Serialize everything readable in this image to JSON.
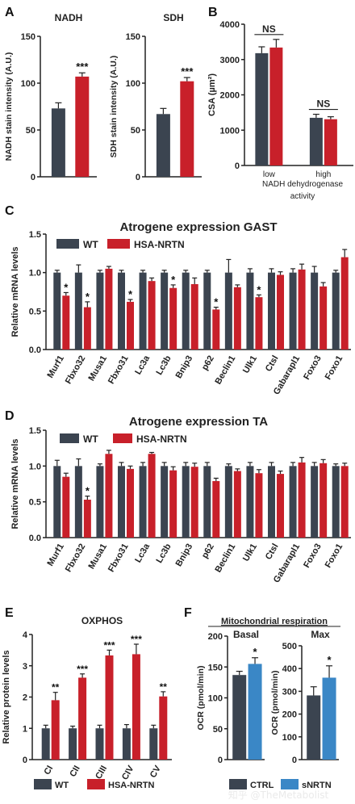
{
  "colors": {
    "wt": "#3b4450",
    "nrtn": "#c8202a",
    "ctrl": "#3b4450",
    "snrtn": "#3a87c6"
  },
  "watermark": "知乎 @TheMetabolist",
  "panels": {
    "A": {
      "letter": "A",
      "ylabel1": "NADH stain intensity (A.U.)",
      "ylabel2": "SDH stain intensity (A.U.)"
    },
    "B": {
      "letter": "B",
      "xlabel": "NADH dehydrogenase activity",
      "ylabel": "CSA (µm²)"
    },
    "C": {
      "letter": "C",
      "legend_wt": "WT",
      "legend_nrtn": "HSA-NRTN",
      "ylabel": "Relative mRNA levels"
    },
    "D": {
      "letter": "D",
      "legend_wt": "WT",
      "legend_nrtn": "HSA-NRTN",
      "ylabel": "Relative mRNA levels"
    },
    "E": {
      "letter": "E",
      "legend_wt": "WT",
      "legend_nrtn": "HSA-NRTN",
      "ylabel": "Relative protein levels"
    },
    "F": {
      "letter": "F",
      "title": "Mitochondrial respiration",
      "ylabel": "OCR (pmol/min)",
      "legend_ctrl": "CTRL",
      "legend_snrtn": "sNRTN"
    }
  },
  "chart_data": [
    {
      "id": "A1",
      "type": "bar",
      "title": "NADH",
      "ylabel": "NADH stain intensity (A.U.)",
      "categories": [
        "WT",
        "HSA-NRTN"
      ],
      "values": [
        73,
        107
      ],
      "errors": [
        6,
        4
      ],
      "ylim": [
        0,
        150
      ],
      "yticks": [
        0,
        50,
        100,
        150
      ],
      "significance": [
        "",
        "***"
      ]
    },
    {
      "id": "A2",
      "type": "bar",
      "title": "SDH",
      "ylabel": "SDH stain intensity (A.U.)",
      "categories": [
        "WT",
        "HSA-NRTN"
      ],
      "values": [
        67,
        102
      ],
      "errors": [
        6,
        4
      ],
      "ylim": [
        0,
        150
      ],
      "yticks": [
        0,
        50,
        100,
        150
      ],
      "significance": [
        "",
        "***"
      ]
    },
    {
      "id": "B",
      "type": "bar",
      "ylabel": "CSA (µm²)",
      "xlabel": "NADH dehydrogenase activity",
      "categories": [
        "low",
        "high"
      ],
      "ylim": [
        0,
        4000
      ],
      "yticks": [
        0,
        1000,
        2000,
        3000,
        4000
      ],
      "series": [
        {
          "name": "WT",
          "values": [
            3180,
            1350
          ],
          "errors": [
            180,
            100
          ]
        },
        {
          "name": "HSA-NRTN",
          "values": [
            3340,
            1310
          ],
          "errors": [
            230,
            70
          ]
        }
      ],
      "significance": [
        "NS",
        "NS"
      ]
    },
    {
      "id": "C",
      "type": "bar",
      "title": "Atrogene expression GAST",
      "ylabel": "Relative mRNA levels",
      "categories": [
        "Murf1",
        "Fbxo32",
        "Musa1",
        "Fbxo31",
        "Lc3a",
        "Lc3b",
        "Bnip3",
        "p62",
        "Beclin1",
        "Ulk1",
        "Ctsl",
        "Gabarapl1",
        "Foxo3",
        "Foxo1"
      ],
      "ylim": [
        0,
        1.5
      ],
      "yticks": [
        0.0,
        0.5,
        1.0,
        1.5
      ],
      "series": [
        {
          "name": "WT",
          "values": [
            1.0,
            1.0,
            1.0,
            1.0,
            1.0,
            1.0,
            1.0,
            1.0,
            1.0,
            1.0,
            1.0,
            1.0,
            1.0,
            1.0
          ],
          "errors": [
            0.03,
            0.1,
            0.03,
            0.03,
            0.03,
            0.03,
            0.03,
            0.03,
            0.17,
            0.05,
            0.05,
            0.05,
            0.08,
            0.03
          ]
        },
        {
          "name": "HSA-NRTN",
          "values": [
            0.7,
            0.55,
            1.05,
            0.62,
            0.89,
            0.8,
            0.85,
            0.52,
            0.81,
            0.68,
            0.97,
            1.04,
            0.82,
            1.2
          ],
          "errors": [
            0.04,
            0.07,
            0.03,
            0.03,
            0.04,
            0.04,
            0.08,
            0.03,
            0.03,
            0.03,
            0.04,
            0.07,
            0.05,
            0.1
          ]
        }
      ],
      "significance": [
        "*",
        "*",
        "",
        "*",
        "",
        "*",
        "",
        "*",
        "",
        "*",
        "",
        "",
        "",
        ""
      ]
    },
    {
      "id": "D",
      "type": "bar",
      "title": "Atrogene expression TA",
      "ylabel": "Relative mRNA levels",
      "categories": [
        "Murf1",
        "Fbxo32",
        "Musa1",
        "Fbxo31",
        "Lc3a",
        "Lc3b",
        "Bnip3",
        "p62",
        "Beclin1",
        "Ulk1",
        "Ctsl",
        "Gabarapl1",
        "Foxo3",
        "Foxo1"
      ],
      "ylim": [
        0,
        1.5
      ],
      "yticks": [
        0.0,
        0.5,
        1.0,
        1.5
      ],
      "series": [
        {
          "name": "WT",
          "values": [
            1.0,
            1.0,
            1.0,
            1.0,
            1.0,
            1.0,
            1.0,
            1.0,
            1.0,
            1.0,
            1.0,
            1.0,
            1.0,
            1.0
          ],
          "errors": [
            0.08,
            0.1,
            0.03,
            0.05,
            0.05,
            0.05,
            0.05,
            0.05,
            0.03,
            0.05,
            0.05,
            0.05,
            0.05,
            0.03
          ]
        },
        {
          "name": "HSA-NRTN",
          "values": [
            0.85,
            0.53,
            1.17,
            0.96,
            1.17,
            0.94,
            0.99,
            0.79,
            0.93,
            0.9,
            0.89,
            1.05,
            1.04,
            1.0
          ],
          "errors": [
            0.05,
            0.05,
            0.05,
            0.04,
            0.02,
            0.05,
            0.05,
            0.04,
            0.03,
            0.05,
            0.04,
            0.07,
            0.05,
            0.04
          ]
        }
      ],
      "significance": [
        "",
        "*",
        "",
        "",
        "",
        "",
        "",
        "",
        "",
        "",
        "",
        "",
        "",
        ""
      ]
    },
    {
      "id": "E",
      "type": "bar",
      "title": "OXPHOS",
      "ylabel": "Relative protein levels",
      "categories": [
        "CI",
        "CII",
        "CIII",
        "CIV",
        "CV"
      ],
      "ylim": [
        0,
        4
      ],
      "yticks": [
        0,
        1,
        2,
        3,
        4
      ],
      "series": [
        {
          "name": "WT",
          "values": [
            1.0,
            1.0,
            1.0,
            1.0,
            1.0
          ],
          "errors": [
            0.1,
            0.07,
            0.1,
            0.12,
            0.1
          ]
        },
        {
          "name": "HSA-NRTN",
          "values": [
            1.9,
            2.62,
            3.33,
            3.37,
            2.02
          ],
          "errors": [
            0.25,
            0.12,
            0.17,
            0.32,
            0.15
          ]
        }
      ],
      "significance": [
        "**",
        "***",
        "***",
        "***",
        "**"
      ]
    },
    {
      "id": "F1",
      "type": "bar",
      "title": "Basal",
      "ylabel": "OCR (pmol/min)",
      "categories": [
        "CTRL",
        "sNRTN"
      ],
      "values": [
        137,
        155
      ],
      "errors": [
        6,
        10
      ],
      "ylim": [
        0,
        200
      ],
      "yticks": [
        0,
        50,
        100,
        150,
        200
      ],
      "significance": [
        "",
        "*"
      ]
    },
    {
      "id": "F2",
      "type": "bar",
      "title": "Max",
      "ylabel": "OCR (pmol/min)",
      "categories": [
        "CTRL",
        "sNRTN"
      ],
      "values": [
        282,
        360
      ],
      "errors": [
        38,
        52
      ],
      "ylim": [
        0,
        500
      ],
      "yticks": [
        0,
        100,
        200,
        300,
        400,
        500
      ],
      "significance": [
        "",
        "*"
      ]
    }
  ]
}
